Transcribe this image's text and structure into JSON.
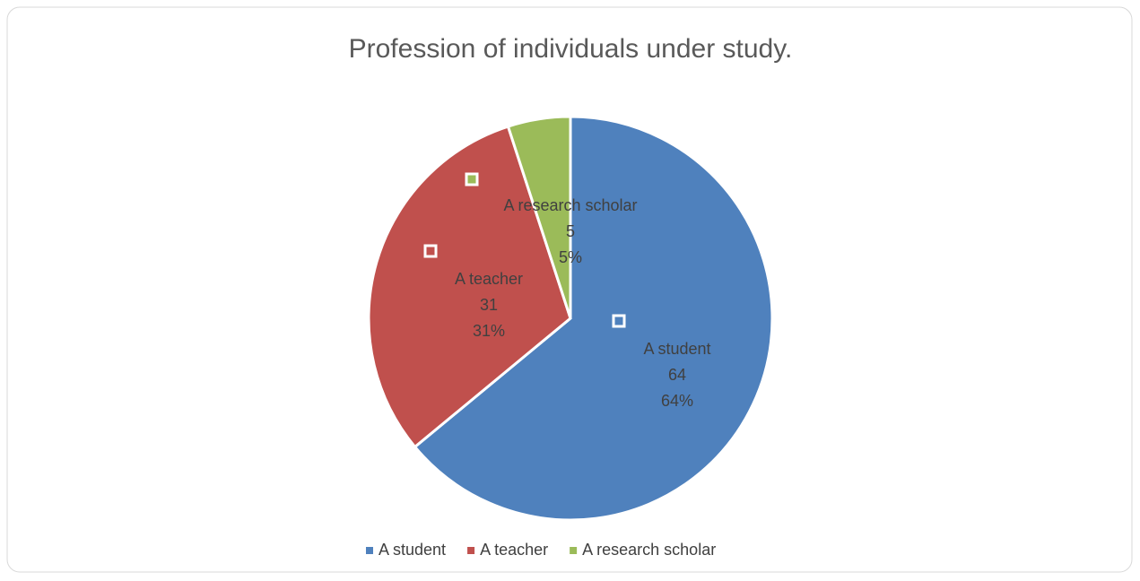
{
  "chart_data": {
    "type": "pie",
    "title": "Profession of individuals under study.",
    "categories": [
      "A student",
      "A teacher",
      "A research scholar"
    ],
    "values": [
      64,
      31,
      5
    ],
    "value_labels": [
      "64%",
      "31%",
      "5%"
    ],
    "colors": [
      "#4f81bd",
      "#c0504d",
      "#9bbb59"
    ],
    "legend": "bottom"
  }
}
